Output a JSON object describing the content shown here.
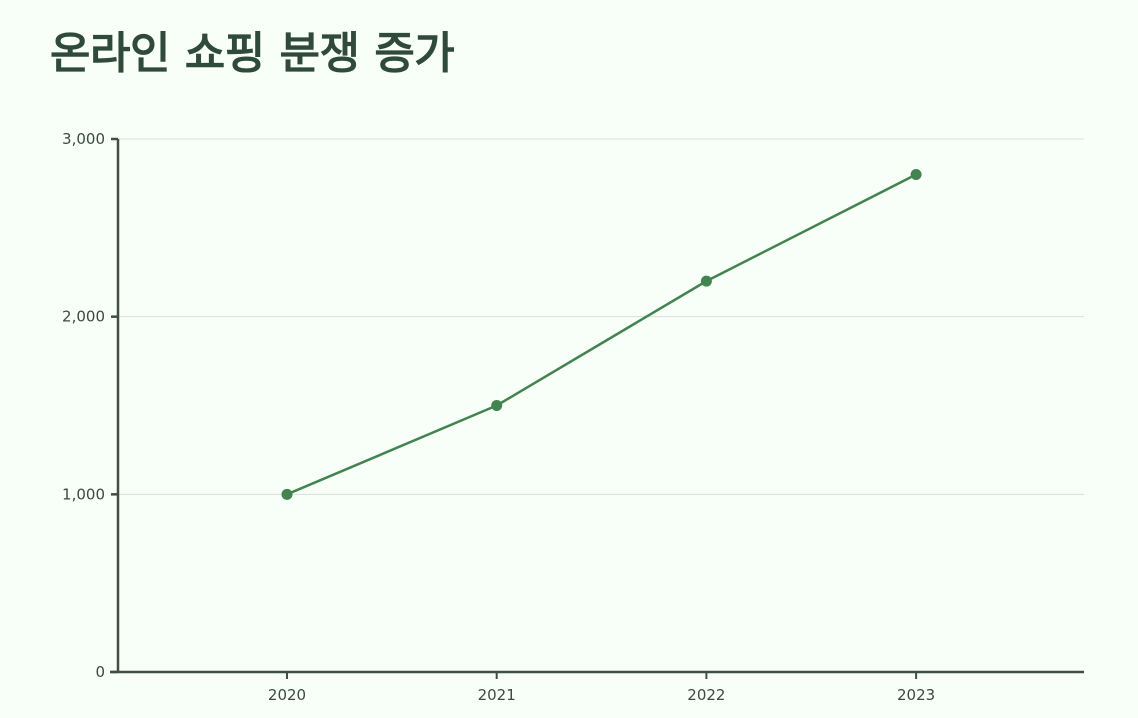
{
  "chart_data": {
    "type": "line",
    "title": "온라인 쇼핑 분쟁 증가",
    "xlabel": "",
    "ylabel": "",
    "categories": [
      "2020",
      "2021",
      "2022",
      "2023"
    ],
    "series": [
      {
        "values": [
          1000,
          1500,
          2200,
          2800
        ]
      }
    ],
    "ylim": [
      0,
      3000
    ],
    "yticks": [
      0,
      1000,
      2000,
      3000
    ],
    "ytick_labels": [
      "0",
      "1,000",
      "2,000",
      "3,000"
    ],
    "grid": true,
    "legend": "none",
    "colors": {
      "line": "#43834f",
      "axis": "#3f4f44",
      "grid": "#d9e0db",
      "title": "#2f4a3a"
    }
  }
}
